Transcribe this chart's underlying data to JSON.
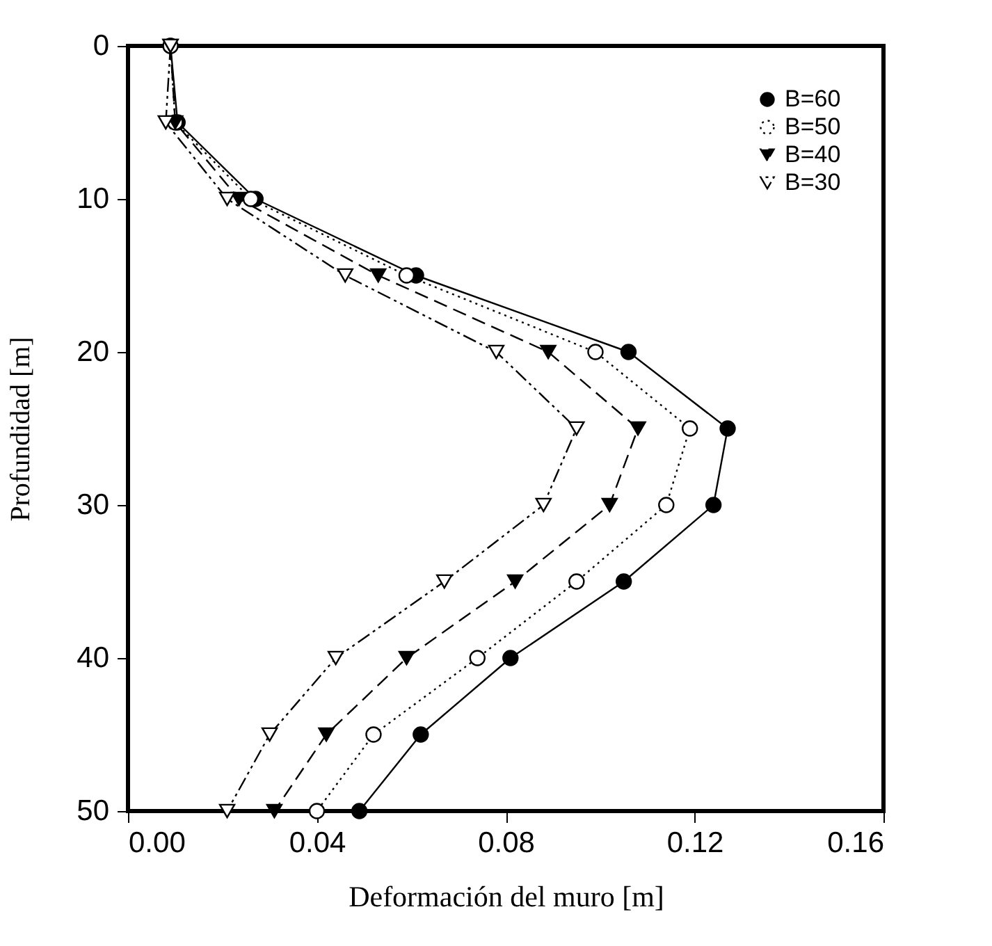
{
  "chart_data": {
    "type": "line",
    "xlabel": "Deformación del muro [m]",
    "ylabel": "Profundidad [m]",
    "xlim": [
      0,
      0.16
    ],
    "xticks": [
      {
        "value": 0,
        "label": "0.00"
      },
      {
        "value": 0.04,
        "label": "0.04"
      },
      {
        "value": 0.08,
        "label": "0.08"
      },
      {
        "value": 0.12,
        "label": "0.12"
      },
      {
        "value": 0.16,
        "label": "0.16"
      }
    ],
    "ylim": [
      50,
      0
    ],
    "yticks": [
      0,
      10,
      20,
      30,
      40,
      50
    ],
    "grid": false,
    "legend": "top right",
    "series": [
      {
        "name": "B=60",
        "color": "#000000",
        "marker": "circle",
        "line_style": "solid",
        "x": [
          0.009,
          0.0105,
          0.027,
          0.061,
          0.106,
          0.127,
          0.124,
          0.105,
          0.081,
          0.062,
          0.049
        ],
        "values": [
          0,
          5,
          10,
          15,
          20,
          25,
          30,
          35,
          40,
          45,
          50
        ]
      },
      {
        "name": "B=50",
        "color": "#000000",
        "marker": "circle-open",
        "line_style": "dotted",
        "x": [
          0.009,
          0.01,
          0.026,
          0.059,
          0.099,
          0.119,
          0.114,
          0.095,
          0.074,
          0.052,
          0.04
        ],
        "values": [
          0,
          5,
          10,
          15,
          20,
          25,
          30,
          35,
          40,
          45,
          50
        ]
      },
      {
        "name": "B=40",
        "color": "#000000",
        "marker": "triangle",
        "line_style": "dashed",
        "x": [
          0.009,
          0.01,
          0.0235,
          0.053,
          0.089,
          0.108,
          0.102,
          0.082,
          0.059,
          0.042,
          0.031
        ],
        "values": [
          0,
          5,
          10,
          15,
          20,
          25,
          30,
          35,
          40,
          45,
          50
        ]
      },
      {
        "name": "B=30",
        "color": "#000000",
        "marker": "triangle-open",
        "line_style": "dashdotdot",
        "x": [
          0.009,
          0.008,
          0.021,
          0.046,
          0.078,
          0.095,
          0.088,
          0.067,
          0.044,
          0.03,
          0.021
        ],
        "values": [
          0,
          5,
          10,
          15,
          20,
          25,
          30,
          35,
          40,
          45,
          50
        ]
      }
    ]
  }
}
